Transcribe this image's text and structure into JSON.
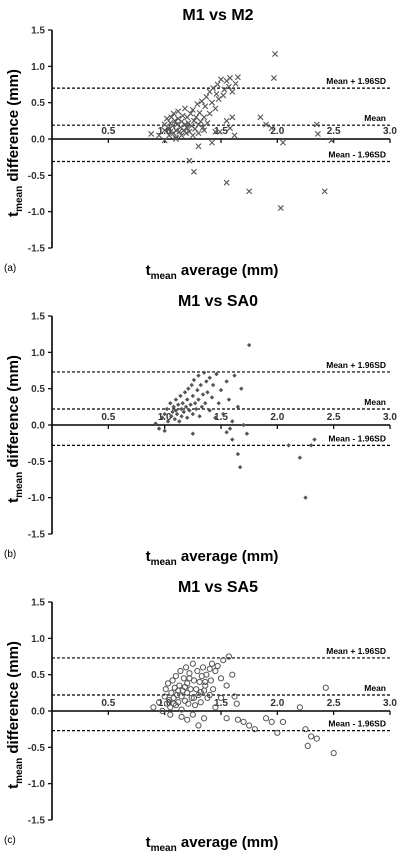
{
  "chart_data": [
    {
      "type": "scatter",
      "panel_label": "(a)",
      "title": "M1 vs M2",
      "marker": "x",
      "xlabel_main": "t",
      "xlabel_sub": "mean",
      "xlabel_rest": " average (mm)",
      "ylabel_main": "t",
      "ylabel_sub": "mean",
      "ylabel_rest": " difference (mm)",
      "xlim": [
        0.0,
        3.0
      ],
      "ylim": [
        -1.5,
        1.5
      ],
      "x_ticks": [
        "0.5",
        "1.0",
        "1.5",
        "2.0",
        "2.5",
        "3.0"
      ],
      "y_ticks": [
        "1.5",
        "1.0",
        "0.5",
        "0.0",
        "-0.5",
        "-1.0",
        "-1.5"
      ],
      "reference_lines": [
        {
          "label": "Mean + 1.96SD",
          "value": 0.7
        },
        {
          "label": "Mean",
          "value": 0.19
        },
        {
          "label": "Mean - 1.96SD",
          "value": -0.31
        }
      ],
      "points": [
        [
          0.88,
          0.07
        ],
        [
          0.95,
          0.05
        ],
        [
          1.0,
          0.12
        ],
        [
          1.0,
          0.2
        ],
        [
          1.02,
          0.28
        ],
        [
          1.03,
          0.15
        ],
        [
          1.04,
          0.05
        ],
        [
          1.05,
          0.1
        ],
        [
          1.05,
          0.22
        ],
        [
          1.06,
          0.3
        ],
        [
          1.07,
          0.18
        ],
        [
          1.08,
          0.08
        ],
        [
          1.08,
          0.35
        ],
        [
          1.09,
          0.25
        ],
        [
          1.1,
          0.12
        ],
        [
          1.1,
          0.02
        ],
        [
          1.11,
          0.2
        ],
        [
          1.12,
          0.28
        ],
        [
          1.12,
          0.38
        ],
        [
          1.13,
          0.1
        ],
        [
          1.14,
          0.16
        ],
        [
          1.15,
          0.05
        ],
        [
          1.15,
          0.24
        ],
        [
          1.16,
          0.32
        ],
        [
          1.17,
          0.12
        ],
        [
          1.18,
          0.2
        ],
        [
          1.18,
          0.42
        ],
        [
          1.19,
          0.08
        ],
        [
          1.2,
          0.15
        ],
        [
          1.2,
          0.3
        ],
        [
          1.21,
          0.22
        ],
        [
          1.22,
          0.1
        ],
        [
          1.23,
          0.35
        ],
        [
          1.24,
          0.18
        ],
        [
          1.25,
          0.4
        ],
        [
          1.25,
          0.05
        ],
        [
          1.26,
          0.25
        ],
        [
          1.27,
          0.14
        ],
        [
          1.28,
          0.3
        ],
        [
          1.29,
          0.48
        ],
        [
          1.3,
          0.2
        ],
        [
          1.3,
          0.08
        ],
        [
          1.31,
          0.36
        ],
        [
          1.32,
          0.24
        ],
        [
          1.33,
          0.52
        ],
        [
          1.34,
          0.16
        ],
        [
          1.35,
          0.3
        ],
        [
          1.36,
          0.45
        ],
        [
          1.37,
          0.58
        ],
        [
          1.38,
          0.22
        ],
        [
          1.4,
          0.65
        ],
        [
          1.4,
          0.35
        ],
        [
          1.42,
          0.5
        ],
        [
          1.43,
          0.7
        ],
        [
          1.45,
          0.42
        ],
        [
          1.46,
          0.62
        ],
        [
          1.47,
          0.75
        ],
        [
          1.48,
          0.55
        ],
        [
          1.49,
          0.1
        ],
        [
          1.5,
          0.82
        ],
        [
          1.52,
          0.6
        ],
        [
          1.53,
          0.68
        ],
        [
          1.55,
          0.8
        ],
        [
          1.57,
          0.72
        ],
        [
          1.58,
          0.84
        ],
        [
          1.6,
          0.65
        ],
        [
          1.63,
          0.76
        ],
        [
          1.65,
          0.85
        ],
        [
          1.55,
          0.25
        ],
        [
          1.58,
          0.15
        ],
        [
          1.62,
          0.05
        ],
        [
          1.6,
          0.3
        ],
        [
          1.45,
          0.1
        ],
        [
          1.42,
          -0.05
        ],
        [
          1.3,
          -0.1
        ],
        [
          1.22,
          -0.3
        ],
        [
          1.26,
          -0.45
        ],
        [
          1.55,
          -0.6
        ],
        [
          1.75,
          -0.72
        ],
        [
          1.97,
          0.84
        ],
        [
          1.98,
          1.17
        ],
        [
          1.85,
          0.3
        ],
        [
          1.9,
          0.2
        ],
        [
          1.95,
          0.15
        ],
        [
          2.03,
          -0.95
        ],
        [
          2.05,
          -0.05
        ],
        [
          2.35,
          0.2
        ],
        [
          2.36,
          0.07
        ],
        [
          2.42,
          -0.72
        ],
        [
          2.48,
          -0.02
        ],
        [
          1.1,
          0.0
        ],
        [
          1.0,
          -0.02
        ],
        [
          1.35,
          0.12
        ]
      ]
    },
    {
      "type": "scatter",
      "panel_label": "(b)",
      "title": "M1 vs SA0",
      "marker": "diamond",
      "xlabel_main": "t",
      "xlabel_sub": "mean",
      "xlabel_rest": " average (mm)",
      "ylabel_main": "t",
      "ylabel_sub": "mean",
      "ylabel_rest": " difference (mm)",
      "xlim": [
        0.0,
        3.0
      ],
      "ylim": [
        -1.5,
        1.5
      ],
      "x_ticks": [
        "0.5",
        "1.0",
        "1.5",
        "2.0",
        "2.5",
        "3.0"
      ],
      "y_ticks": [
        "1.5",
        "1.0",
        "0.5",
        "0.0",
        "-0.5",
        "-1.0",
        "-1.5"
      ],
      "reference_lines": [
        {
          "label": "Mean + 1.96SD",
          "value": 0.73
        },
        {
          "label": "Mean",
          "value": 0.22
        },
        {
          "label": "Mean - 1.96SD",
          "value": -0.28
        }
      ],
      "points": [
        [
          0.92,
          0.02
        ],
        [
          0.95,
          -0.05
        ],
        [
          0.98,
          0.1
        ],
        [
          1.0,
          0.15
        ],
        [
          1.02,
          0.22
        ],
        [
          1.03,
          0.05
        ],
        [
          1.05,
          0.3
        ],
        [
          1.06,
          0.12
        ],
        [
          1.07,
          0.18
        ],
        [
          1.08,
          0.25
        ],
        [
          1.09,
          0.08
        ],
        [
          1.1,
          0.35
        ],
        [
          1.1,
          0.2
        ],
        [
          1.11,
          0.15
        ],
        [
          1.12,
          0.28
        ],
        [
          1.13,
          0.05
        ],
        [
          1.14,
          0.4
        ],
        [
          1.15,
          0.22
        ],
        [
          1.15,
          0.12
        ],
        [
          1.16,
          0.3
        ],
        [
          1.17,
          0.18
        ],
        [
          1.18,
          0.45
        ],
        [
          1.19,
          0.25
        ],
        [
          1.2,
          0.1
        ],
        [
          1.2,
          0.35
        ],
        [
          1.21,
          0.5
        ],
        [
          1.22,
          0.2
        ],
        [
          1.23,
          0.28
        ],
        [
          1.24,
          0.55
        ],
        [
          1.25,
          0.15
        ],
        [
          1.25,
          0.4
        ],
        [
          1.26,
          0.62
        ],
        [
          1.27,
          0.3
        ],
        [
          1.28,
          0.22
        ],
        [
          1.29,
          0.48
        ],
        [
          1.3,
          0.68
        ],
        [
          1.3,
          0.35
        ],
        [
          1.31,
          0.12
        ],
        [
          1.32,
          0.55
        ],
        [
          1.33,
          0.25
        ],
        [
          1.34,
          0.42
        ],
        [
          1.35,
          0.72
        ],
        [
          1.36,
          0.3
        ],
        [
          1.37,
          0.6
        ],
        [
          1.38,
          0.45
        ],
        [
          1.4,
          0.65
        ],
        [
          1.4,
          0.2
        ],
        [
          1.42,
          0.38
        ],
        [
          1.43,
          0.55
        ],
        [
          1.45,
          0.1
        ],
        [
          1.46,
          0.7
        ],
        [
          1.48,
          0.3
        ],
        [
          1.5,
          0.48
        ],
        [
          1.52,
          0.15
        ],
        [
          1.55,
          0.6
        ],
        [
          1.57,
          0.35
        ],
        [
          1.6,
          0.05
        ],
        [
          1.62,
          0.68
        ],
        [
          1.65,
          0.25
        ],
        [
          1.68,
          0.5
        ],
        [
          1.55,
          -0.1
        ],
        [
          1.58,
          -0.05
        ],
        [
          1.6,
          -0.2
        ],
        [
          1.65,
          -0.4
        ],
        [
          1.67,
          -0.58
        ],
        [
          1.73,
          -0.12
        ],
        [
          1.75,
          1.1
        ],
        [
          1.7,
          0.0
        ],
        [
          1.25,
          -0.12
        ],
        [
          1.0,
          -0.08
        ],
        [
          2.1,
          -0.28
        ],
        [
          2.2,
          -0.45
        ],
        [
          2.25,
          -1.0
        ],
        [
          2.3,
          -0.28
        ],
        [
          2.33,
          -0.2
        ]
      ]
    },
    {
      "type": "scatter",
      "panel_label": "(c)",
      "title": "M1 vs SA5",
      "marker": "circle",
      "xlabel_main": "t",
      "xlabel_sub": "mean",
      "xlabel_rest": " average (mm)",
      "ylabel_main": "t",
      "ylabel_sub": "mean",
      "ylabel_rest": " difference (mm)",
      "xlim": [
        0.0,
        3.0
      ],
      "ylim": [
        -1.5,
        1.5
      ],
      "x_ticks": [
        "0.5",
        "1.0",
        "1.5",
        "2.0",
        "2.5",
        "3.0"
      ],
      "y_ticks": [
        "1.5",
        "1.0",
        "0.5",
        "0.0",
        "-0.5",
        "-1.0",
        "-1.5"
      ],
      "reference_lines": [
        {
          "label": "Mean + 1.96SD",
          "value": 0.73
        },
        {
          "label": "Mean",
          "value": 0.22
        },
        {
          "label": "Mean - 1.96SD",
          "value": -0.27
        }
      ],
      "points": [
        [
          0.9,
          0.05
        ],
        [
          0.95,
          0.12
        ],
        [
          0.98,
          0.0
        ],
        [
          1.0,
          0.2
        ],
        [
          1.01,
          0.3
        ],
        [
          1.02,
          0.1
        ],
        [
          1.03,
          0.38
        ],
        [
          1.04,
          0.15
        ],
        [
          1.05,
          0.05
        ],
        [
          1.06,
          0.25
        ],
        [
          1.07,
          0.42
        ],
        [
          1.08,
          0.18
        ],
        [
          1.09,
          0.32
        ],
        [
          1.1,
          0.08
        ],
        [
          1.1,
          0.48
        ],
        [
          1.11,
          0.22
        ],
        [
          1.12,
          0.12
        ],
        [
          1.13,
          0.35
        ],
        [
          1.14,
          0.55
        ],
        [
          1.15,
          0.2
        ],
        [
          1.15,
          0.02
        ],
        [
          1.16,
          0.28
        ],
        [
          1.17,
          0.45
        ],
        [
          1.18,
          0.14
        ],
        [
          1.19,
          0.6
        ],
        [
          1.2,
          0.25
        ],
        [
          1.2,
          0.38
        ],
        [
          1.21,
          0.1
        ],
        [
          1.22,
          0.52
        ],
        [
          1.23,
          0.3
        ],
        [
          1.24,
          0.18
        ],
        [
          1.25,
          0.65
        ],
        [
          1.26,
          0.42
        ],
        [
          1.27,
          0.08
        ],
        [
          1.28,
          0.3
        ],
        [
          1.29,
          0.55
        ],
        [
          1.3,
          0.22
        ],
        [
          1.31,
          0.4
        ],
        [
          1.32,
          0.12
        ],
        [
          1.33,
          0.48
        ],
        [
          1.34,
          0.6
        ],
        [
          1.35,
          0.28
        ],
        [
          1.36,
          0.35
        ],
        [
          1.37,
          0.5
        ],
        [
          1.38,
          0.18
        ],
        [
          1.4,
          0.58
        ],
        [
          1.41,
          0.42
        ],
        [
          1.42,
          0.65
        ],
        [
          1.43,
          0.3
        ],
        [
          1.45,
          0.55
        ],
        [
          1.47,
          0.62
        ],
        [
          1.5,
          0.45
        ],
        [
          1.52,
          0.7
        ],
        [
          1.55,
          0.35
        ],
        [
          1.57,
          0.75
        ],
        [
          1.6,
          0.5
        ],
        [
          1.62,
          0.2
        ],
        [
          1.64,
          0.1
        ],
        [
          1.5,
          0.18
        ],
        [
          1.45,
          0.05
        ],
        [
          1.35,
          -0.1
        ],
        [
          1.25,
          -0.05
        ],
        [
          1.15,
          -0.08
        ],
        [
          1.05,
          -0.05
        ],
        [
          1.3,
          -0.2
        ],
        [
          1.2,
          -0.12
        ],
        [
          1.55,
          -0.1
        ],
        [
          1.65,
          -0.12
        ],
        [
          1.7,
          -0.15
        ],
        [
          1.75,
          -0.2
        ],
        [
          1.8,
          -0.25
        ],
        [
          1.9,
          -0.1
        ],
        [
          1.95,
          -0.15
        ],
        [
          2.0,
          -0.3
        ],
        [
          2.05,
          -0.15
        ],
        [
          2.2,
          0.05
        ],
        [
          2.25,
          -0.25
        ],
        [
          2.27,
          -0.48
        ],
        [
          2.3,
          -0.35
        ],
        [
          2.35,
          -0.38
        ],
        [
          2.43,
          0.32
        ],
        [
          2.5,
          -0.58
        ],
        [
          1.12,
          0.28
        ],
        [
          1.18,
          0.33
        ],
        [
          1.26,
          0.18
        ],
        [
          1.32,
          0.26
        ],
        [
          1.4,
          0.22
        ],
        [
          1.08,
          0.1
        ],
        [
          1.22,
          0.45
        ],
        [
          1.36,
          0.4
        ]
      ]
    }
  ]
}
